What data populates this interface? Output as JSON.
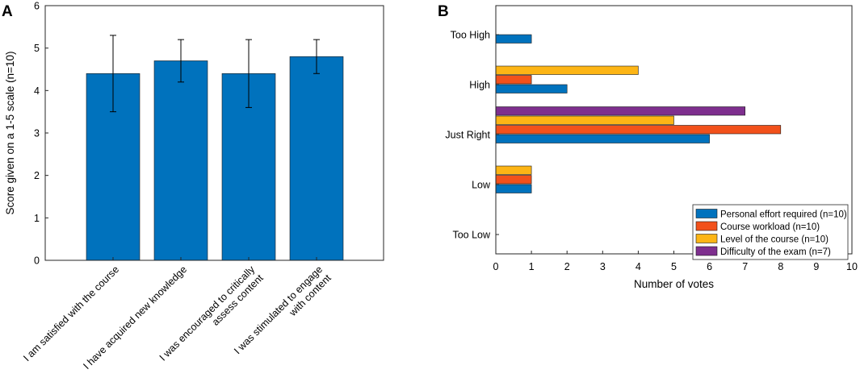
{
  "colors": {
    "blue": "#0072bd",
    "red": "#f2511b",
    "yellow": "#fdb515",
    "purple": "#7e2f8e",
    "axis": "#262626"
  },
  "chart_data": [
    {
      "panel": "A",
      "type": "bar",
      "title": "",
      "xlabel": "",
      "ylabel": "Score given on a 1-5 scale (n=10)",
      "ylim": [
        0,
        6
      ],
      "yticks": [
        0,
        1,
        2,
        3,
        4,
        5,
        6
      ],
      "grid": false,
      "categories": [
        "I am satisfied with the course",
        "I have acquired new knowledge",
        "I was encouraged to critically assess content",
        "I was stimulated to engage with content"
      ],
      "category_lines": [
        [
          "I am satisfied with the course"
        ],
        [
          "I have acquired new knowledge"
        ],
        [
          "I was encouraged to critically",
          "assess content"
        ],
        [
          "I was stimulated to engage",
          "with content"
        ]
      ],
      "values": [
        4.4,
        4.7,
        4.4,
        4.8
      ],
      "error_low": [
        3.5,
        4.2,
        3.6,
        4.4
      ],
      "error_high": [
        5.3,
        5.2,
        5.2,
        5.2
      ],
      "color": "#0072bd"
    },
    {
      "panel": "B",
      "type": "bar",
      "orientation": "horizontal",
      "title": "",
      "xlabel": "Number of votes",
      "ylabel": "",
      "xlim": [
        0,
        10
      ],
      "xticks": [
        0,
        1,
        2,
        3,
        4,
        5,
        6,
        7,
        8,
        9,
        10
      ],
      "grid": false,
      "categories": [
        "Too High",
        "High",
        "Just Right",
        "Low",
        "Too Low"
      ],
      "series": [
        {
          "name": "Personal effort required (n=10)",
          "color": "#0072bd",
          "values": [
            1,
            2,
            6,
            1,
            0
          ]
        },
        {
          "name": "Course workload (n=10)",
          "color": "#f2511b",
          "values": [
            0,
            1,
            8,
            1,
            0
          ]
        },
        {
          "name": "Level of the course (n=10)",
          "color": "#fdb515",
          "values": [
            0,
            4,
            5,
            1,
            0
          ]
        },
        {
          "name": "Difficulty of the exam (n=7)",
          "color": "#7e2f8e",
          "values": [
            0,
            0,
            7,
            0,
            0
          ]
        }
      ],
      "legend_position": "bottom-right"
    }
  ]
}
